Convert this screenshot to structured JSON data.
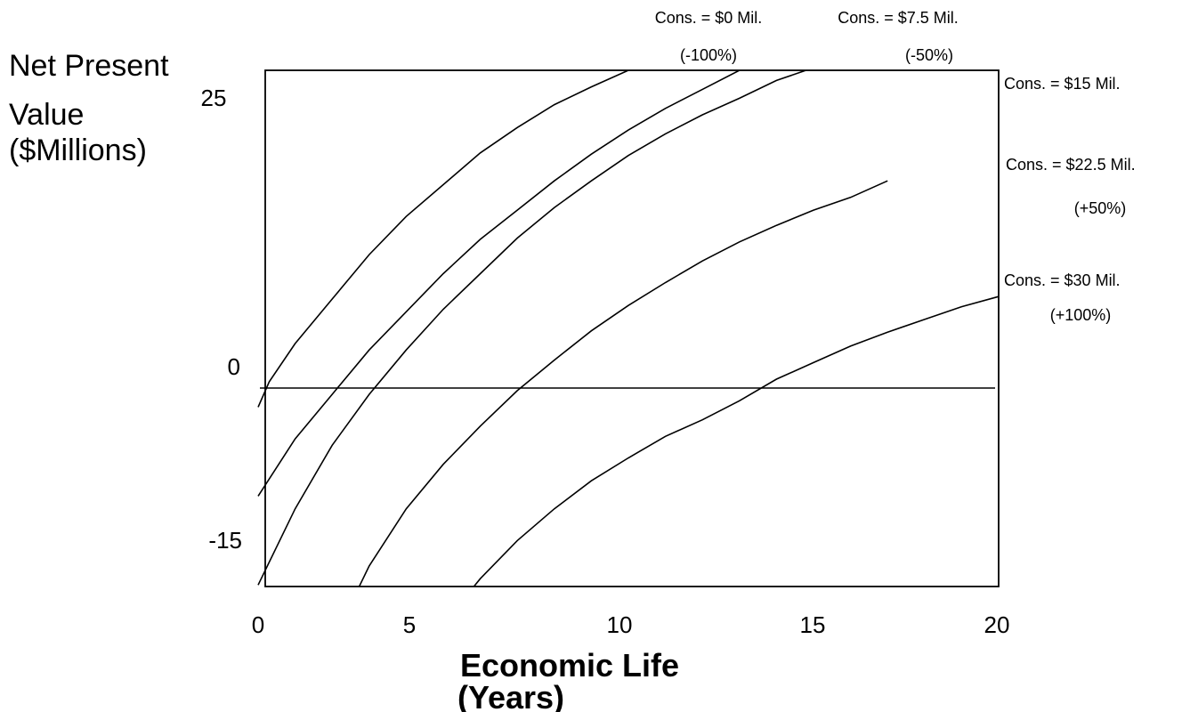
{
  "chart_data": {
    "type": "line",
    "ylabel_lines": [
      "Net Present",
      "Value",
      "($Millions)"
    ],
    "xlabel_lines": [
      "Economic Life",
      "(Years)"
    ],
    "xlim": [
      0,
      20
    ],
    "ylim": [
      -20,
      25
    ],
    "x_ticks": [
      "0",
      "5",
      "10",
      "15",
      "20"
    ],
    "y_tick_labels": [
      {
        "value": 25,
        "label": "25"
      },
      {
        "value": 0,
        "label": "0"
      },
      {
        "value": -15,
        "label": "-15"
      }
    ],
    "series": [
      {
        "name": "Cons. = $0 Mil.",
        "pct": "(-100%)",
        "points": [
          [
            0,
            -1.5
          ],
          [
            0.3,
            0.5
          ],
          [
            1,
            3.5
          ],
          [
            2,
            7
          ],
          [
            3,
            10.5
          ],
          [
            4,
            13.5
          ],
          [
            5,
            16
          ],
          [
            6,
            18.5
          ],
          [
            7,
            20.5
          ],
          [
            8,
            22.3
          ],
          [
            9,
            23.7
          ],
          [
            10,
            25
          ]
        ]
      },
      {
        "name": "Cons. = $7.5 Mil.",
        "pct": "(-50%)",
        "points": [
          [
            0,
            -8.5
          ],
          [
            1,
            -4
          ],
          [
            2,
            -0.5
          ],
          [
            3,
            3
          ],
          [
            4,
            6
          ],
          [
            5,
            9
          ],
          [
            6,
            11.7
          ],
          [
            7,
            14
          ],
          [
            8,
            16.3
          ],
          [
            9,
            18.4
          ],
          [
            10,
            20.3
          ],
          [
            11,
            22
          ],
          [
            12,
            23.5
          ],
          [
            13,
            25
          ]
        ]
      },
      {
        "name": "Cons. = $15 Mil.",
        "pct": "",
        "points": [
          [
            0,
            -15.5
          ],
          [
            1,
            -9.5
          ],
          [
            2,
            -4.5
          ],
          [
            3,
            -0.5
          ],
          [
            4,
            3
          ],
          [
            5,
            6.2
          ],
          [
            6,
            9
          ],
          [
            7,
            11.8
          ],
          [
            8,
            14.2
          ],
          [
            9,
            16.3
          ],
          [
            10,
            18.3
          ],
          [
            11,
            20
          ],
          [
            12,
            21.5
          ],
          [
            13,
            22.8
          ],
          [
            14,
            24.2
          ],
          [
            15,
            25.2
          ],
          [
            16,
            26.2
          ]
        ]
      },
      {
        "name": "Cons. = $22.5 Mil.",
        "pct": "(+50%)",
        "points": [
          [
            2,
            -20
          ],
          [
            3,
            -14
          ],
          [
            4,
            -9.5
          ],
          [
            5,
            -6
          ],
          [
            6,
            -3
          ],
          [
            7,
            -0.2
          ],
          [
            8,
            2.2
          ],
          [
            9,
            4.5
          ],
          [
            10,
            6.5
          ],
          [
            11,
            8.3
          ],
          [
            12,
            10
          ],
          [
            13,
            11.5
          ],
          [
            14,
            12.8
          ],
          [
            15,
            14
          ],
          [
            16,
            15
          ],
          [
            17,
            16.3
          ]
        ]
      },
      {
        "name": "Cons. = $30 Mil.",
        "pct": "(+100%)",
        "points": [
          [
            4.6,
            -20
          ],
          [
            6,
            -15
          ],
          [
            7,
            -12
          ],
          [
            8,
            -9.5
          ],
          [
            9,
            -7.3
          ],
          [
            10,
            -5.5
          ],
          [
            11,
            -3.8
          ],
          [
            12,
            -2.5
          ],
          [
            13,
            -1
          ],
          [
            14,
            0.7
          ],
          [
            15,
            2
          ],
          [
            16,
            3.3
          ],
          [
            17,
            4.4
          ],
          [
            18,
            5.4
          ],
          [
            19,
            6.4
          ],
          [
            20,
            7.2
          ]
        ]
      }
    ]
  }
}
